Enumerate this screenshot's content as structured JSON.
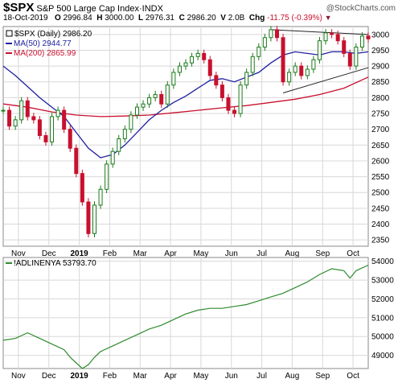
{
  "header": {
    "symbol": "$SPX",
    "name": "S&P 500 Large Cap Index",
    "exchange": "INDX",
    "watermark": "@StockCharts.com",
    "date": "18-Oct-2019",
    "open_label": "O",
    "open": "2996.84",
    "high_label": "H",
    "high": "3000.00",
    "low_label": "L",
    "low": "2976.31",
    "close_label": "C",
    "close": "2986.20",
    "vol_label": "V",
    "volume": "2.0B",
    "chg_label": "Chg",
    "chg": "-11.75 (-0.39%)"
  },
  "colors": {
    "up": "#1a7a1a",
    "down": "#c8102e",
    "ma50": "#1f1fa0",
    "ma200": "#c8102e",
    "breadth": "#2e8b2e",
    "grid": "#d8d8d8"
  },
  "chart_data": [
    {
      "type": "candlestick",
      "legend": [
        {
          "label": "$SPX (Daily) 2986.20",
          "marker": "candle"
        },
        {
          "label": "MA(50) 2944.77",
          "color": "#1f1fa0"
        },
        {
          "label": "MA(200) 2865.99",
          "color": "#c8102e"
        }
      ],
      "x_labels": [
        "Nov",
        "Dec",
        "2019",
        "Feb",
        "Mar",
        "Apr",
        "May",
        "Jun",
        "Jul",
        "Aug",
        "Sep",
        "Oct"
      ],
      "y_ticks": [
        2350,
        2400,
        2450,
        2500,
        2550,
        2600,
        2650,
        2700,
        2750,
        2800,
        2850,
        2900,
        2950,
        3000
      ],
      "ylim": [
        2330,
        3025
      ],
      "x_range": [
        0,
        60
      ],
      "close_series": [
        [
          0,
          2760
        ],
        [
          1,
          2710
        ],
        [
          2,
          2730
        ],
        [
          3,
          2790
        ],
        [
          4,
          2740
        ],
        [
          5,
          2730
        ],
        [
          6,
          2680
        ],
        [
          7,
          2660
        ],
        [
          8,
          2740
        ],
        [
          9,
          2760
        ],
        [
          10,
          2700
        ],
        [
          11,
          2640
        ],
        [
          12,
          2560
        ],
        [
          13,
          2470
        ],
        [
          14,
          2370
        ],
        [
          15,
          2460
        ],
        [
          16,
          2510
        ],
        [
          17,
          2590
        ],
        [
          18,
          2630
        ],
        [
          19,
          2670
        ],
        [
          20,
          2700
        ],
        [
          21,
          2745
        ],
        [
          22,
          2770
        ],
        [
          23,
          2780
        ],
        [
          24,
          2800
        ],
        [
          25,
          2810
        ],
        [
          26,
          2780
        ],
        [
          27,
          2840
        ],
        [
          28,
          2880
        ],
        [
          29,
          2900
        ],
        [
          30,
          2910
        ],
        [
          31,
          2930
        ],
        [
          32,
          2940
        ],
        [
          33,
          2920
        ],
        [
          34,
          2870
        ],
        [
          35,
          2840
        ],
        [
          36,
          2800
        ],
        [
          37,
          2760
        ],
        [
          38,
          2750
        ],
        [
          39,
          2840
        ],
        [
          40,
          2880
        ],
        [
          41,
          2930
        ],
        [
          42,
          2960
        ],
        [
          43,
          2990
        ],
        [
          44,
          3015
        ],
        [
          45,
          2990
        ],
        [
          46,
          2850
        ],
        [
          47,
          2880
        ],
        [
          48,
          2900
        ],
        [
          49,
          2870
        ],
        [
          50,
          2890
        ],
        [
          51,
          2920
        ],
        [
          52,
          2980
        ],
        [
          53,
          3005
        ],
        [
          54,
          3000
        ],
        [
          55,
          2980
        ],
        [
          56,
          2940
        ],
        [
          57,
          2900
        ],
        [
          58,
          2960
        ],
        [
          59,
          2995
        ],
        [
          60,
          2986
        ]
      ],
      "ma50_series": [
        [
          0,
          2900
        ],
        [
          2,
          2870
        ],
        [
          4,
          2835
        ],
        [
          6,
          2800
        ],
        [
          8,
          2770
        ],
        [
          10,
          2740
        ],
        [
          12,
          2690
        ],
        [
          14,
          2640
        ],
        [
          16,
          2610
        ],
        [
          18,
          2620
        ],
        [
          20,
          2650
        ],
        [
          22,
          2690
        ],
        [
          24,
          2730
        ],
        [
          26,
          2760
        ],
        [
          28,
          2785
        ],
        [
          30,
          2805
        ],
        [
          32,
          2830
        ],
        [
          34,
          2855
        ],
        [
          36,
          2860
        ],
        [
          38,
          2850
        ],
        [
          40,
          2865
        ],
        [
          42,
          2880
        ],
        [
          44,
          2910
        ],
        [
          46,
          2935
        ],
        [
          48,
          2945
        ],
        [
          50,
          2940
        ],
        [
          52,
          2935
        ],
        [
          54,
          2945
        ],
        [
          56,
          2945
        ],
        [
          58,
          2940
        ],
        [
          60,
          2945
        ]
      ],
      "ma200_series": [
        [
          0,
          2780
        ],
        [
          4,
          2770
        ],
        [
          8,
          2755
        ],
        [
          12,
          2745
        ],
        [
          16,
          2740
        ],
        [
          20,
          2742
        ],
        [
          24,
          2745
        ],
        [
          28,
          2752
        ],
        [
          32,
          2760
        ],
        [
          36,
          2768
        ],
        [
          40,
          2775
        ],
        [
          44,
          2785
        ],
        [
          48,
          2795
        ],
        [
          52,
          2810
        ],
        [
          56,
          2830
        ],
        [
          60,
          2865
        ]
      ],
      "trendlines": [
        {
          "from": [
            44,
            3015
          ],
          "to": [
            60,
            3000
          ]
        },
        {
          "from": [
            46,
            2815
          ],
          "to": [
            60,
            2895
          ]
        }
      ]
    },
    {
      "type": "line",
      "legend": [
        {
          "label": "!ADLINENYA 53793.70",
          "color": "#2e8b2e"
        }
      ],
      "x_labels": [
        "Nov",
        "Dec",
        "2019",
        "Feb",
        "Mar",
        "Apr",
        "May",
        "Jun",
        "Jul",
        "Aug",
        "Sep",
        "Oct"
      ],
      "y_ticks": [
        49000,
        50000,
        51000,
        52000,
        53000,
        54000
      ],
      "ylim": [
        48300,
        54200
      ],
      "x_range": [
        0,
        60
      ],
      "series": [
        {
          "values": [
            [
              0,
              49800
            ],
            [
              2,
              49900
            ],
            [
              4,
              50200
            ],
            [
              6,
              49900
            ],
            [
              8,
              49600
            ],
            [
              10,
              49300
            ],
            [
              11,
              48900
            ],
            [
              12,
              48600
            ],
            [
              13,
              48300
            ],
            [
              14,
              48500
            ],
            [
              15,
              48900
            ],
            [
              16,
              49200
            ],
            [
              18,
              49500
            ],
            [
              20,
              49800
            ],
            [
              22,
              50100
            ],
            [
              24,
              50400
            ],
            [
              26,
              50600
            ],
            [
              28,
              50900
            ],
            [
              30,
              51200
            ],
            [
              32,
              51400
            ],
            [
              34,
              51500
            ],
            [
              36,
              51500
            ],
            [
              38,
              51600
            ],
            [
              40,
              51700
            ],
            [
              42,
              51900
            ],
            [
              44,
              52100
            ],
            [
              46,
              52300
            ],
            [
              48,
              52600
            ],
            [
              50,
              52900
            ],
            [
              52,
              53300
            ],
            [
              54,
              53600
            ],
            [
              56,
              53500
            ],
            [
              57,
              53100
            ],
            [
              58,
              53500
            ],
            [
              60,
              53794
            ]
          ]
        }
      ]
    }
  ]
}
